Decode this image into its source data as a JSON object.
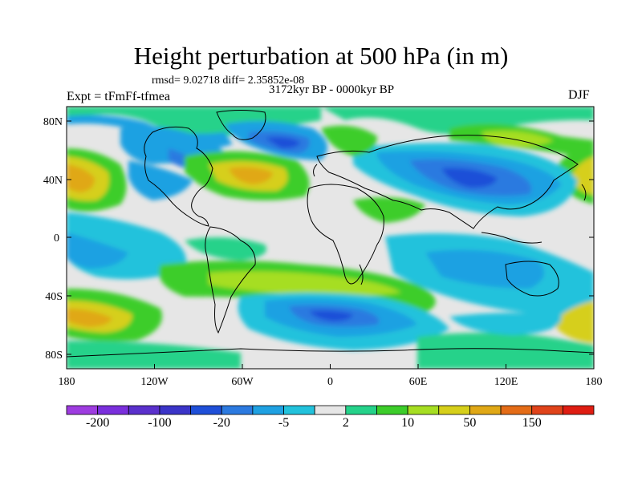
{
  "figure": {
    "title": "Height perturbation at 500 hPa (in m)",
    "stats": "rmsd= 9.02718 diff= 2.35852e-08",
    "period": "3172kyr BP - 0000kyr BP",
    "experiment": "Expt = tFmFf-tfmea",
    "season": "DJF"
  },
  "axes": {
    "lat_ticks": [
      "80N",
      "40N",
      "0",
      "40S",
      "80S"
    ],
    "lon_ticks": [
      "180",
      "120W",
      "60W",
      "0",
      "60E",
      "120E",
      "180"
    ]
  },
  "colorbar": {
    "colors": [
      "#9e3ce0",
      "#7a2fdc",
      "#5a30cc",
      "#3b34c8",
      "#1f4fd8",
      "#2c7ae0",
      "#1fa1e2",
      "#22c2dc",
      "#e6e6e6",
      "#25d28a",
      "#3ccd2a",
      "#a6de22",
      "#d6cf1a",
      "#e0a816",
      "#e46c17",
      "#e0431a",
      "#df1d12"
    ],
    "labels": [
      "-200",
      "-100",
      "-20",
      "-5",
      "2",
      "10",
      "50",
      "150"
    ]
  },
  "field_palette": {
    "neutral": "#e6e6e6",
    "pos_light": "#25d28a",
    "pos_mid": "#3ccd2a",
    "pos_high": "#a6de22",
    "pos_higher": "#d6cf1a",
    "pos_peak": "#e0a816",
    "neg_light": "#22c2dc",
    "neg_mid": "#1fa1e2",
    "neg_high": "#2c7ae0",
    "neg_peak": "#1f4fd8",
    "coast": "#000000"
  }
}
